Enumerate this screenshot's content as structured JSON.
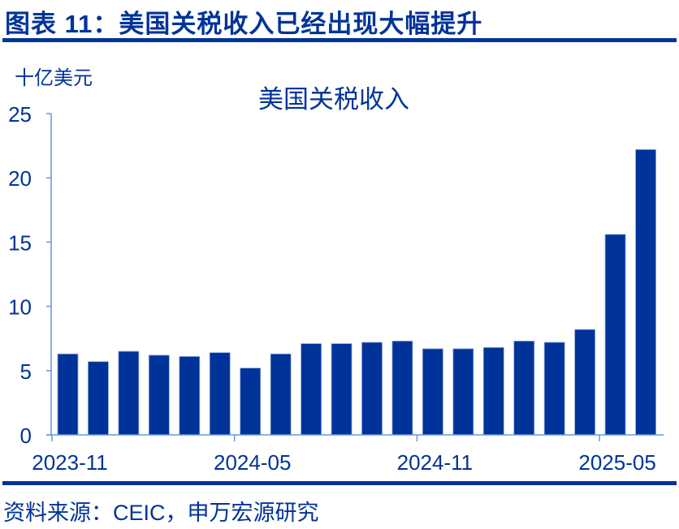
{
  "header": {
    "figure_title": "图表 11：美国关税收入已经出现大幅提升"
  },
  "footer": {
    "source": "资料来源：CEIC，申万宏源研究"
  },
  "colors": {
    "bar": "#003399",
    "axis": "#6699DD",
    "text": "#003399",
    "rule": "#003399"
  },
  "chart_data": {
    "type": "bar",
    "title": "美国关税收入",
    "ylabel": "十亿美元",
    "xlabel": "",
    "ylim": [
      0,
      25
    ],
    "yticks": [
      0,
      5,
      10,
      15,
      20,
      25
    ],
    "xtick_labels": [
      "2023-11",
      "2024-05",
      "2024-11",
      "2025-05"
    ],
    "grid": false,
    "legend": null,
    "categories": [
      "2023-11",
      "2023-12",
      "2024-01",
      "2024-02",
      "2024-03",
      "2024-04",
      "2024-05",
      "2024-06",
      "2024-07",
      "2024-08",
      "2024-09",
      "2024-10",
      "2024-11",
      "2024-12",
      "2025-01",
      "2025-02",
      "2025-03",
      "2025-04",
      "2025-05",
      "2025-06"
    ],
    "series": [
      {
        "name": "美国关税收入",
        "values": [
          6.3,
          5.7,
          6.5,
          6.2,
          6.1,
          6.4,
          5.2,
          6.3,
          7.1,
          7.1,
          7.2,
          7.3,
          6.7,
          6.7,
          6.8,
          7.3,
          7.2,
          8.2,
          15.6,
          22.2
        ]
      }
    ]
  }
}
